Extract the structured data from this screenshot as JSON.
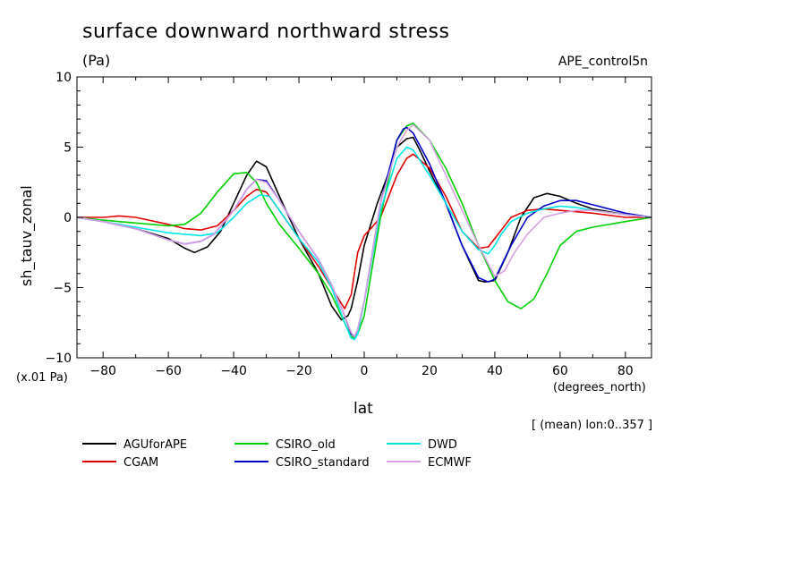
{
  "chart_data": {
    "type": "line",
    "title": "surface downward northward stress",
    "units_label": "(Pa)",
    "run_label": "APE_control5n",
    "ylabel": "sh_tauv_zonal",
    "yscale_label": "(x.01 Pa)",
    "xlabel": "lat",
    "xunits_label": "(degrees_north)",
    "mean_label": "[ (mean) lon:0..357 ]",
    "xlim": [
      -88,
      88
    ],
    "ylim": [
      -10,
      10
    ],
    "xticks": [
      -80,
      -60,
      -40,
      -20,
      0,
      20,
      40,
      60,
      80
    ],
    "yticks": [
      -10,
      -5,
      0,
      5,
      10
    ],
    "grid": false,
    "legend_position": "bottom",
    "series": [
      {
        "name": "AGUforAPE",
        "color": "#000000",
        "x": [
          -88,
          -80,
          -70,
          -60,
          -55,
          -52,
          -48,
          -44,
          -40,
          -36,
          -33,
          -30,
          -26,
          -20,
          -14,
          -10,
          -7,
          -5,
          -4,
          -2,
          0,
          4,
          8,
          10,
          13,
          15,
          17,
          20,
          25,
          30,
          35,
          37,
          40,
          44,
          48,
          52,
          56,
          60,
          65,
          70,
          80,
          88
        ],
        "y": [
          0,
          -0.3,
          -0.8,
          -1.5,
          -2.2,
          -2.5,
          -2.1,
          -1.0,
          1.0,
          3.0,
          4.0,
          3.6,
          1.5,
          -1.5,
          -4.0,
          -6.3,
          -7.3,
          -7.0,
          -6.5,
          -4.5,
          -2.0,
          1.0,
          3.5,
          5.0,
          5.6,
          5.7,
          4.8,
          3.3,
          1.0,
          -2.0,
          -4.5,
          -4.6,
          -4.5,
          -2.5,
          0.0,
          1.4,
          1.7,
          1.5,
          1.0,
          0.6,
          0.2,
          0
        ]
      },
      {
        "name": "CGAM",
        "color": "#e00000",
        "x": [
          -88,
          -80,
          -75,
          -70,
          -60,
          -55,
          -50,
          -45,
          -40,
          -36,
          -33,
          -30,
          -26,
          -20,
          -14,
          -10,
          -6,
          -4,
          -2,
          0,
          2,
          5,
          10,
          13,
          15,
          20,
          25,
          30,
          35,
          38,
          40,
          45,
          50,
          55,
          60,
          65,
          70,
          80,
          88
        ],
        "y": [
          0,
          0,
          0.1,
          0,
          -0.5,
          -0.8,
          -0.9,
          -0.6,
          0.5,
          1.5,
          2.0,
          1.8,
          0.5,
          -1.5,
          -3.5,
          -5.0,
          -6.5,
          -5.5,
          -2.5,
          -1.3,
          -0.8,
          0.0,
          3.0,
          4.2,
          4.5,
          3.5,
          1.5,
          -1.0,
          -2.2,
          -2.1,
          -1.5,
          0.0,
          0.5,
          0.6,
          0.5,
          0.4,
          0.3,
          0.0,
          0
        ]
      },
      {
        "name": "CSIRO_old",
        "color": "#00d000",
        "x": [
          -88,
          -80,
          -70,
          -60,
          -55,
          -50,
          -45,
          -40,
          -36,
          -33,
          -30,
          -26,
          -20,
          -14,
          -10,
          -6,
          -4,
          -3,
          -2,
          0,
          5,
          10,
          13,
          15,
          20,
          25,
          30,
          35,
          40,
          44,
          48,
          52,
          56,
          60,
          65,
          70,
          80,
          88
        ],
        "y": [
          0,
          -0.2,
          -0.4,
          -0.6,
          -0.5,
          0.3,
          1.8,
          3.1,
          3.2,
          2.5,
          1.0,
          -0.5,
          -2.2,
          -4.0,
          -5.5,
          -7.5,
          -8.5,
          -8.6,
          -8.3,
          -7.0,
          0.0,
          5.5,
          6.5,
          6.7,
          5.5,
          3.5,
          1.0,
          -2.0,
          -4.5,
          -6.0,
          -6.5,
          -5.8,
          -4.0,
          -2.0,
          -1.0,
          -0.7,
          -0.3,
          0
        ]
      },
      {
        "name": "CSIRO_standard",
        "color": "#0000cc",
        "x": [
          -88,
          -80,
          -70,
          -60,
          -55,
          -50,
          -46,
          -40,
          -36,
          -33,
          -30,
          -26,
          -20,
          -14,
          -10,
          -6,
          -4,
          -3,
          -2,
          0,
          5,
          10,
          12,
          13,
          15,
          20,
          25,
          30,
          35,
          38,
          40,
          45,
          50,
          55,
          60,
          65,
          70,
          80,
          88
        ],
        "y": [
          0,
          -0.3,
          -0.8,
          -1.6,
          -1.9,
          -1.7,
          -1.2,
          0.5,
          2.0,
          2.7,
          2.6,
          1.2,
          -1.0,
          -3.0,
          -4.8,
          -7.0,
          -8.3,
          -8.5,
          -8.0,
          -6.0,
          1.0,
          5.5,
          6.3,
          6.4,
          6.0,
          3.8,
          1.0,
          -2.0,
          -4.3,
          -4.6,
          -4.4,
          -2.0,
          0.0,
          0.8,
          1.2,
          1.2,
          0.9,
          0.3,
          0
        ]
      },
      {
        "name": "DWD",
        "color": "#00e6e6",
        "x": [
          -88,
          -80,
          -70,
          -60,
          -50,
          -45,
          -40,
          -36,
          -32,
          -29,
          -26,
          -20,
          -14,
          -10,
          -6,
          -4,
          -3,
          -2,
          0,
          5,
          10,
          13,
          15,
          20,
          25,
          30,
          35,
          38,
          40,
          42,
          45,
          50,
          55,
          60,
          65,
          70,
          80,
          88
        ],
        "y": [
          0,
          -0.3,
          -0.7,
          -1.1,
          -1.3,
          -1.1,
          0.0,
          1.0,
          1.6,
          1.5,
          0.5,
          -1.5,
          -3.2,
          -5.0,
          -7.5,
          -8.6,
          -8.7,
          -8.3,
          -6.0,
          0.5,
          4.2,
          5.0,
          4.8,
          3.0,
          1.0,
          -1.0,
          -2.3,
          -2.6,
          -2.0,
          -1.2,
          -0.3,
          0.3,
          0.6,
          0.8,
          0.7,
          0.5,
          0.2,
          0
        ]
      },
      {
        "name": "ECMWF",
        "color": "#d8a0e0",
        "x": [
          -88,
          -80,
          -70,
          -60,
          -55,
          -50,
          -46,
          -40,
          -36,
          -33,
          -30,
          -26,
          -20,
          -14,
          -10,
          -6,
          -4,
          -3,
          -2,
          0,
          5,
          10,
          13,
          15,
          20,
          25,
          30,
          35,
          40,
          43,
          46,
          50,
          55,
          60,
          65,
          70,
          80,
          88
        ],
        "y": [
          0,
          -0.3,
          -0.8,
          -1.6,
          -1.9,
          -1.7,
          -1.2,
          0.5,
          2.0,
          2.7,
          2.5,
          1.2,
          -1.0,
          -3.0,
          -4.8,
          -7.0,
          -8.2,
          -8.5,
          -8.0,
          -6.0,
          1.0,
          5.0,
          6.2,
          6.6,
          5.5,
          3.0,
          0.5,
          -2.0,
          -4.2,
          -3.8,
          -2.5,
          -1.2,
          0.0,
          0.3,
          0.5,
          0.5,
          0.2,
          0
        ]
      }
    ]
  }
}
